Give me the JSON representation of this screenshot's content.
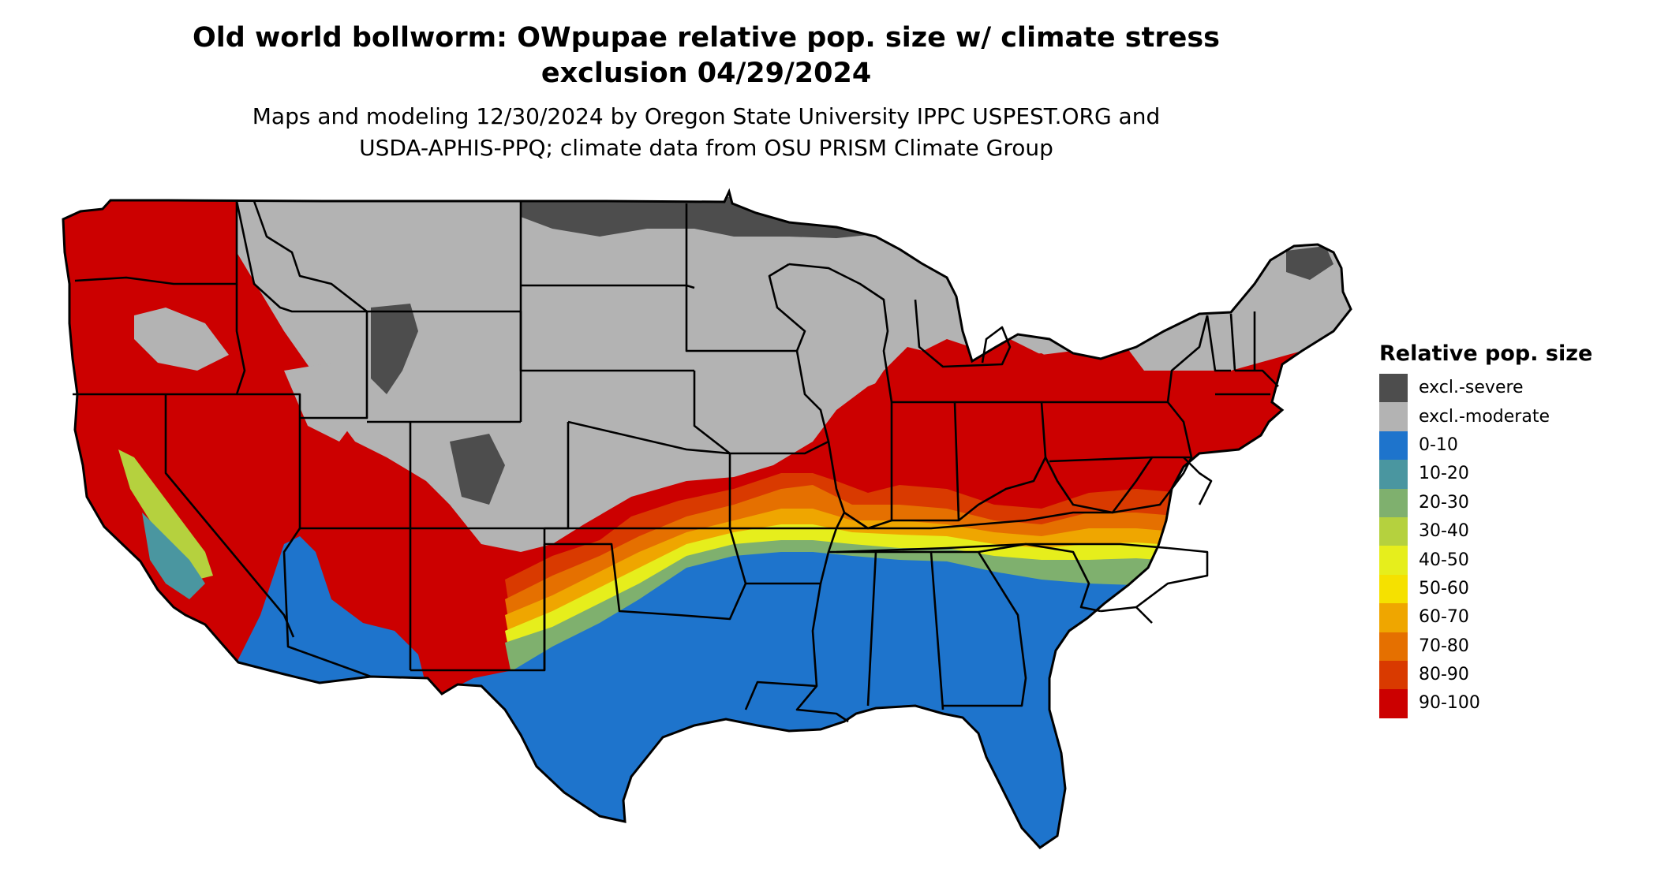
{
  "header": {
    "title_line1": "Old world bollworm: OWpupae relative pop. size w/ climate stress",
    "title_line2": "exclusion 04/29/2024",
    "subtitle_line1": "Maps and modeling 12/30/2024 by Oregon State University IPPC USPEST.ORG and",
    "subtitle_line2": "USDA-APHIS-PPQ; climate data from OSU PRISM Climate Group"
  },
  "legend": {
    "title": "Relative pop. size",
    "items": [
      {
        "label": "excl.-severe",
        "color": "#4d4d4d"
      },
      {
        "label": "excl.-moderate",
        "color": "#b3b3b3"
      },
      {
        "label": "0-10",
        "color": "#1e74cc"
      },
      {
        "label": "10-20",
        "color": "#4a96a0"
      },
      {
        "label": "20-30",
        "color": "#7fb06e"
      },
      {
        "label": "30-40",
        "color": "#b5d13e"
      },
      {
        "label": "40-50",
        "color": "#e6ee1c"
      },
      {
        "label": "50-60",
        "color": "#f5e100"
      },
      {
        "label": "60-70",
        "color": "#efa600"
      },
      {
        "label": "70-80",
        "color": "#e57000"
      },
      {
        "label": "80-90",
        "color": "#d93a00"
      },
      {
        "label": "90-100",
        "color": "#cc0000"
      }
    ]
  },
  "map": {
    "region": "contiguous-united-states"
  }
}
